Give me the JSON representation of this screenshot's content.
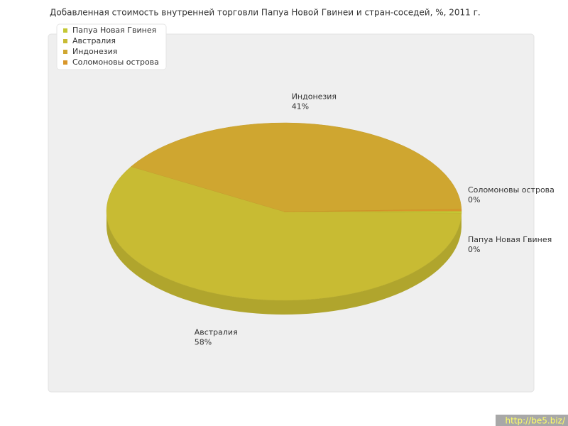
{
  "chart_data": {
    "type": "pie",
    "title": "Добавленная стоимость внутренней торговли Папуа Новой Гвинеи и стран-соседей, %, 2011 г.",
    "categories": [
      "Папуа Новая Гвинея",
      "Австралия",
      "Индонезия",
      "Соломоновы острова"
    ],
    "values": [
      0.4,
      58,
      41,
      0.3
    ],
    "value_labels": [
      "0%",
      "58%",
      "41%",
      "0%"
    ],
    "colors": [
      "#c4c834",
      "#c8bb33",
      "#cfa630",
      "#d8962a"
    ],
    "watermark": "http://be5.biz/"
  }
}
